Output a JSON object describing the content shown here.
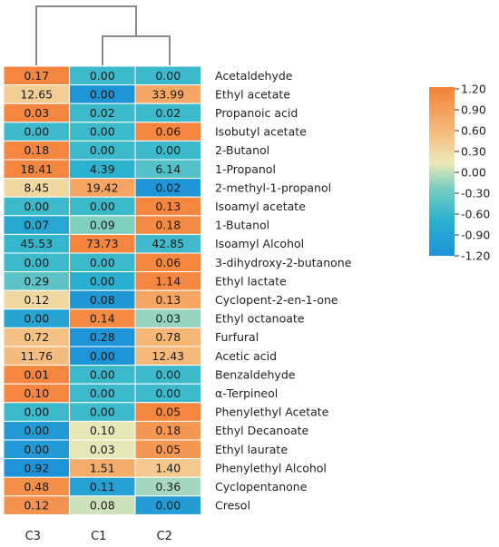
{
  "chart_data": {
    "type": "heatmap",
    "title": "",
    "columns": [
      "C3",
      "C1",
      "C2"
    ],
    "rows": [
      "Acetaldehyde",
      "Ethyl acetate",
      "Propanoic acid",
      "Isobutyl acetate",
      "2-Butanol",
      "1-Propanol",
      "2-methyl-1-propanol",
      "Isoamyl acetate",
      "1-Butanol",
      "Isoamyl Alcohol",
      "3-dihydroxy-2-butanone",
      "Ethyl lactate",
      "Cyclopent-2-en-1-one",
      "Ethyl octanoate",
      "Furfural",
      "Acetic acid",
      "Benzaldehyde",
      "α-Terpineol",
      "Phenylethyl Acetate",
      "Ethyl Decanoate",
      "Ethyl laurate",
      "Phenylethyl Alcohol",
      "Cyclopentanone",
      "Cresol"
    ],
    "values": [
      [
        "0.17",
        "0.00",
        "0.00"
      ],
      [
        "12.65",
        "0.00",
        "33.99"
      ],
      [
        "0.03",
        "0.02",
        "0.02"
      ],
      [
        "0.00",
        "0.00",
        "0.06"
      ],
      [
        "0.18",
        "0.00",
        "0.00"
      ],
      [
        "18.41",
        "4.39",
        "6.14"
      ],
      [
        "8.45",
        "19.42",
        "0.02"
      ],
      [
        "0.00",
        "0.00",
        "0.13"
      ],
      [
        "0.07",
        "0.09",
        "0.18"
      ],
      [
        "45.53",
        "73.73",
        "42.85"
      ],
      [
        "0.00",
        "0.00",
        "0.06"
      ],
      [
        "0.29",
        "0.00",
        "1.14"
      ],
      [
        "0.12",
        "0.08",
        "0.13"
      ],
      [
        "0.00",
        "0.14",
        "0.03"
      ],
      [
        "0.72",
        "0.28",
        "0.78"
      ],
      [
        "11.76",
        "0.00",
        "12.43"
      ],
      [
        "0.01",
        "0.00",
        "0.00"
      ],
      [
        "0.10",
        "0.00",
        "0.00"
      ],
      [
        "0.00",
        "0.00",
        "0.05"
      ],
      [
        "0.00",
        "0.10",
        "0.18"
      ],
      [
        "0.00",
        "0.03",
        "0.05"
      ],
      [
        "0.92",
        "1.51",
        "1.40"
      ],
      [
        "0.48",
        "0.11",
        "0.36"
      ],
      [
        "0.12",
        "0.08",
        "0.00"
      ]
    ],
    "scaled_values": [
      [
        1.15,
        -0.58,
        -0.58
      ],
      [
        0.38,
        -1.15,
        0.77
      ],
      [
        1.15,
        -0.58,
        -0.58
      ],
      [
        -0.58,
        -0.58,
        1.15
      ],
      [
        1.15,
        -0.58,
        -0.58
      ],
      [
        1.15,
        -0.7,
        -0.45
      ],
      [
        0.3,
        0.82,
        -1.12
      ],
      [
        -0.58,
        -0.58,
        1.15
      ],
      [
        -0.87,
        -0.22,
        1.09
      ],
      [
        -0.62,
        1.15,
        -0.55
      ],
      [
        -0.58,
        -0.58,
        1.15
      ],
      [
        -0.4,
        -0.73,
        1.13
      ],
      [
        0.3,
        -1.1,
        0.8
      ],
      [
        -0.9,
        1.1,
        -0.15
      ],
      [
        0.5,
        -1.15,
        0.62
      ],
      [
        0.55,
        -1.15,
        0.58
      ],
      [
        1.15,
        -0.58,
        -0.58
      ],
      [
        1.15,
        -0.58,
        -0.58
      ],
      [
        -0.58,
        -0.58,
        1.15
      ],
      [
        -1.05,
        0.1,
        0.95
      ],
      [
        -1.05,
        0.1,
        0.95
      ],
      [
        -1.15,
        0.72,
        0.43
      ],
      [
        1.05,
        -0.95,
        -0.1
      ],
      [
        1.0,
        0.02,
        -1.02
      ]
    ],
    "colorbar": {
      "min": -1.2,
      "max": 1.2,
      "ticks": [
        "1.20",
        "0.90",
        "0.60",
        "0.30",
        "0.00",
        "-0.30",
        "-0.60",
        "-0.90",
        "-1.20"
      ],
      "colors": [
        "#1e90d8",
        "#2db3cf",
        "#79cdc0",
        "#eee9b8",
        "#f5b878",
        "#f4813a"
      ]
    },
    "dendrogram": "C3 joins cluster (C1, C2)"
  }
}
